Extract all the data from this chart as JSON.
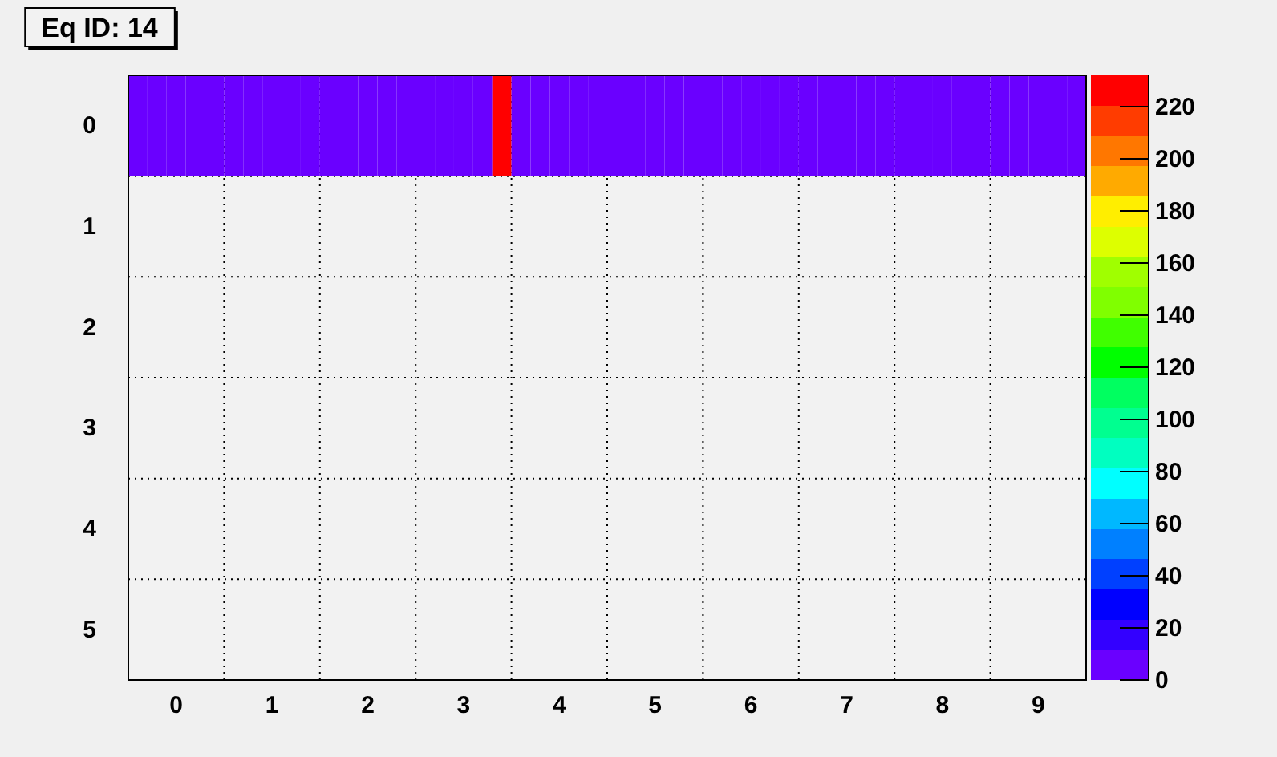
{
  "chart_data": {
    "type": "heatmap",
    "title": "Eq ID: 14",
    "categories": [
      null,
      null,
      "0",
      null,
      null,
      null,
      null,
      "1",
      null,
      null,
      null,
      null,
      "2",
      null,
      null,
      null,
      null,
      "3",
      null,
      null,
      null,
      null,
      "4",
      null,
      null,
      null,
      null,
      "5",
      null,
      null,
      null,
      null,
      "6",
      null,
      null,
      null,
      null,
      "7",
      null,
      null,
      null,
      null,
      "8",
      null,
      null,
      null,
      null,
      "9",
      null,
      null
    ],
    "y_categories": [
      "0",
      "1",
      "2",
      "3",
      "4",
      "5"
    ],
    "cells": [
      [
        10,
        10,
        10,
        10,
        10,
        10,
        10,
        10,
        10,
        10,
        10,
        10,
        10,
        10,
        10,
        10,
        10,
        10,
        10,
        230,
        10,
        10,
        10,
        10,
        10,
        10,
        10,
        10,
        10,
        10,
        10,
        10,
        10,
        10,
        10,
        10,
        10,
        10,
        10,
        10,
        10,
        10,
        10,
        10,
        10,
        10,
        10,
        10,
        10,
        10
      ],
      [
        null,
        null,
        null,
        null,
        null,
        null,
        null,
        null,
        null,
        null,
        null,
        null,
        null,
        null,
        null,
        null,
        null,
        null,
        null,
        null,
        null,
        null,
        null,
        null,
        null,
        null,
        null,
        null,
        null,
        null,
        null,
        null,
        null,
        null,
        null,
        null,
        null,
        null,
        null,
        null,
        null,
        null,
        null,
        null,
        null,
        null,
        null,
        null,
        null,
        null
      ],
      [
        null,
        null,
        null,
        null,
        null,
        null,
        null,
        null,
        null,
        null,
        null,
        null,
        null,
        null,
        null,
        null,
        null,
        null,
        null,
        null,
        null,
        null,
        null,
        null,
        null,
        null,
        null,
        null,
        null,
        null,
        null,
        null,
        null,
        null,
        null,
        null,
        null,
        null,
        null,
        null,
        null,
        null,
        null,
        null,
        null,
        null,
        null,
        null,
        null,
        null
      ],
      [
        null,
        null,
        null,
        null,
        null,
        null,
        null,
        null,
        null,
        null,
        null,
        null,
        null,
        null,
        null,
        null,
        null,
        null,
        null,
        null,
        null,
        null,
        null,
        null,
        null,
        null,
        null,
        null,
        null,
        null,
        null,
        null,
        null,
        null,
        null,
        null,
        null,
        null,
        null,
        null,
        null,
        null,
        null,
        null,
        null,
        null,
        null,
        null,
        null,
        null
      ],
      [
        null,
        null,
        null,
        null,
        null,
        null,
        null,
        null,
        null,
        null,
        null,
        null,
        null,
        null,
        null,
        null,
        null,
        null,
        null,
        null,
        null,
        null,
        null,
        null,
        null,
        null,
        null,
        null,
        null,
        null,
        null,
        null,
        null,
        null,
        null,
        null,
        null,
        null,
        null,
        null,
        null,
        null,
        null,
        null,
        null,
        null,
        null,
        null,
        null,
        null
      ],
      [
        null,
        null,
        null,
        null,
        null,
        null,
        null,
        null,
        null,
        null,
        null,
        null,
        null,
        null,
        null,
        null,
        null,
        null,
        null,
        null,
        null,
        null,
        null,
        null,
        null,
        null,
        null,
        null,
        null,
        null,
        null,
        null,
        null,
        null,
        null,
        null,
        null,
        null,
        null,
        null,
        null,
        null,
        null,
        null,
        null,
        null,
        null,
        null,
        null,
        null
      ]
    ],
    "clim": [
      0,
      232
    ],
    "cticks": [
      0,
      20,
      40,
      60,
      80,
      100,
      120,
      140,
      160,
      180,
      200,
      220
    ],
    "grid": true
  }
}
